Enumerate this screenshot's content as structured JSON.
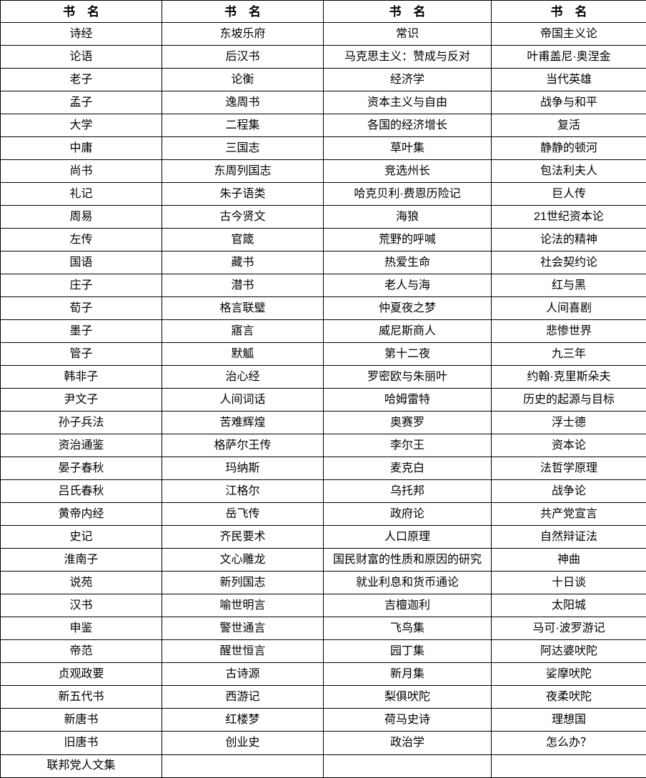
{
  "table": {
    "headers": [
      "书　名",
      "书　名",
      "书　名",
      "书　名"
    ],
    "rows": [
      [
        "诗经",
        "东坡乐府",
        "常识",
        "帝国主义论"
      ],
      [
        "论语",
        "后汉书",
        "马克思主义：赞成与反对",
        "叶甫盖尼·奥涅金"
      ],
      [
        "老子",
        "论衡",
        "经济学",
        "当代英雄"
      ],
      [
        "孟子",
        "逸周书",
        "资本主义与自由",
        "战争与和平"
      ],
      [
        "大学",
        "二程集",
        "各国的经济增长",
        "复活"
      ],
      [
        "中庸",
        "三国志",
        "草叶集",
        "静静的顿河"
      ],
      [
        "尚书",
        "东周列国志",
        "竞选州长",
        "包法利夫人"
      ],
      [
        "礼记",
        "朱子语类",
        "哈克贝利·费恩历险记",
        "巨人传"
      ],
      [
        "周易",
        "古今贤文",
        "海狼",
        "21世纪资本论"
      ],
      [
        "左传",
        "官箴",
        "荒野的呼喊",
        "论法的精神"
      ],
      [
        "国语",
        "藏书",
        "热爱生命",
        "社会契约论"
      ],
      [
        "庄子",
        "潜书",
        "老人与海",
        "红与黑"
      ],
      [
        "荀子",
        "格言联璧",
        "仲夏夜之梦",
        "人间喜剧"
      ],
      [
        "墨子",
        "寤言",
        "威尼斯商人",
        "悲惨世界"
      ],
      [
        "管子",
        "默觚",
        "第十二夜",
        "九三年"
      ],
      [
        "韩非子",
        "治心经",
        "罗密欧与朱丽叶",
        "约翰·克里斯朵夫"
      ],
      [
        "尹文子",
        "人间词话",
        "哈姆雷特",
        "历史的起源与目标"
      ],
      [
        "孙子兵法",
        "苦难辉煌",
        "奥赛罗",
        "浮士德"
      ],
      [
        "资治通鉴",
        "格萨尔王传",
        "李尔王",
        "资本论"
      ],
      [
        "晏子春秋",
        "玛纳斯",
        "麦克白",
        "法哲学原理"
      ],
      [
        "吕氏春秋",
        "江格尔",
        "乌托邦",
        "战争论"
      ],
      [
        "黄帝内经",
        "岳飞传",
        "政府论",
        "共产党宣言"
      ],
      [
        "史记",
        "齐民要术",
        "人口原理",
        "自然辩证法"
      ],
      [
        "淮南子",
        "文心雕龙",
        "国民财富的性质和原因的研究",
        "神曲"
      ],
      [
        "说苑",
        "新列国志",
        "就业利息和货币通论",
        "十日谈"
      ],
      [
        "汉书",
        "喻世明言",
        "吉檀迦利",
        "太阳城"
      ],
      [
        "申鉴",
        "警世通言",
        "飞鸟集",
        "马可·波罗游记"
      ],
      [
        "帝范",
        "醒世恒言",
        "园丁集",
        "阿达婆吠陀"
      ],
      [
        "贞观政要",
        "古诗源",
        "新月集",
        "娑摩吠陀"
      ],
      [
        "新五代书",
        "西游记",
        "梨俱吠陀",
        "夜柔吠陀"
      ],
      [
        "新唐书",
        "红楼梦",
        "荷马史诗",
        "理想国"
      ],
      [
        "旧唐书",
        "创业史",
        "政治学",
        "怎么办？"
      ],
      [
        "联邦党人文集",
        "",
        "",
        ""
      ]
    ]
  },
  "colors": {
    "border": "#000000",
    "text": "#000000",
    "background": "#ffffff"
  }
}
